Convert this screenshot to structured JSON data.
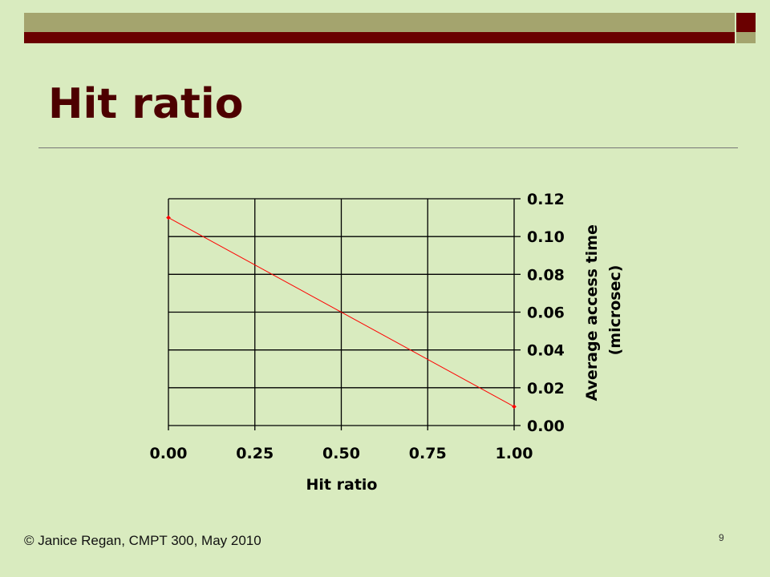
{
  "slide": {
    "title": "Hit ratio",
    "footer": "© Janice Regan, CMPT 300, May 2010",
    "page_number": "9"
  },
  "colors": {
    "background": "#d9ebbf",
    "title": "#4d0000",
    "series_line": "#ff0000",
    "deco_olive": "#a4a46e",
    "deco_maroon": "#6a0000"
  },
  "chart_data": {
    "type": "line",
    "xlabel": "Hit ratio",
    "ylabel_lines": [
      "Average access time",
      "(microsec)"
    ],
    "x_ticks": [
      "0.00",
      "0.25",
      "0.50",
      "0.75",
      "1.00"
    ],
    "y_ticks": [
      "0.00",
      "0.02",
      "0.04",
      "0.06",
      "0.08",
      "0.10",
      "0.12"
    ],
    "xlim": [
      0,
      1
    ],
    "ylim": [
      0,
      0.12
    ],
    "grid": true,
    "y_axis_side": "right",
    "series": [
      {
        "x": [
          0.0,
          1.0
        ],
        "y": [
          0.11,
          0.01
        ]
      }
    ]
  }
}
